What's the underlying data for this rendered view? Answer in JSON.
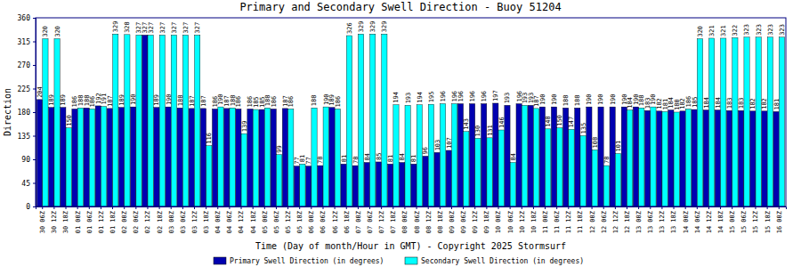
{
  "chart_data": {
    "type": "bar",
    "title": "Primary and Secondary Swell Direction - Buoy 51204",
    "x_label": "Time (Day of month/Hour in GMT) - Copyright 2025 Stormsurf",
    "y_label": "Direction",
    "categories": [
      "30 06Z",
      "30 12Z",
      "30 18Z",
      "01 00Z",
      "01 06Z",
      "01 12Z",
      "01 18Z",
      "02 00Z",
      "02 06Z",
      "02 12Z",
      "02 18Z",
      "03 00Z",
      "03 06Z",
      "03 12Z",
      "03 18Z",
      "04 00Z",
      "04 06Z",
      "04 12Z",
      "04 18Z",
      "05 00Z",
      "05 06Z",
      "05 12Z",
      "05 18Z",
      "06 00Z",
      "06 06Z",
      "06 12Z",
      "06 18Z",
      "07 00Z",
      "07 06Z",
      "07 12Z",
      "07 18Z",
      "08 00Z",
      "08 06Z",
      "08 12Z",
      "08 18Z",
      "09 00Z",
      "09 06Z",
      "09 12Z",
      "09 18Z",
      "10 00Z",
      "10 06Z",
      "10 12Z",
      "10 18Z",
      "11 00Z",
      "11 06Z",
      "11 12Z",
      "11 18Z",
      "12 00Z",
      "12 06Z",
      "12 12Z",
      "12 18Z",
      "13 00Z",
      "13 06Z",
      "13 12Z",
      "13 18Z",
      "14 00Z",
      "14 06Z",
      "14 12Z",
      "14 18Z",
      "15 00Z",
      "15 06Z",
      "15 12Z",
      "15 18Z",
      "16 00Z"
    ],
    "series": [
      {
        "name": "Primary Swell Direction (in degrees)",
        "color": "#0000b0",
        "values": [
          204,
          189,
          189,
          186,
          188,
          192,
          187,
          189,
          190,
          327,
          189,
          190,
          188,
          187,
          187,
          186,
          187,
          186,
          186,
          185,
          186,
          187,
          77,
          77,
          78,
          189,
          81,
          78,
          84,
          85,
          81,
          84,
          81,
          96,
          103,
          107,
          196,
          196,
          196,
          197,
          193,
          196,
          193,
          190,
          190,
          188,
          188,
          190,
          190,
          190,
          190,
          190,
          183,
          182,
          184,
          182,
          185,
          184,
          184,
          183,
          183,
          182,
          182,
          181
        ]
      },
      {
        "name": "Secondary Swell Direction (in degrees)",
        "color": "#00ffff",
        "values": [
          320,
          320,
          150,
          188,
          186,
          191,
          329,
          328,
          327,
          327,
          327,
          327,
          327,
          327,
          116,
          190,
          188,
          139,
          185,
          188,
          99,
          186,
          81,
          188,
          190,
          186,
          326,
          329,
          329,
          329,
          194,
          193,
          194,
          195,
          196,
          196,
          143,
          130,
          131,
          146,
          84,
          193,
          187,
          148,
          150,
          147,
          135,
          108,
          78,
          101,
          184,
          188,
          190,
          181,
          180,
          186,
          320,
          321,
          321,
          322,
          323,
          323,
          323,
          323
        ]
      }
    ],
    "ylim": [
      0,
      360
    ],
    "yticks": [
      0,
      45,
      90,
      135,
      180,
      225,
      270,
      315,
      360
    ],
    "grid": false,
    "data_labels": true,
    "legend": "bottom"
  }
}
